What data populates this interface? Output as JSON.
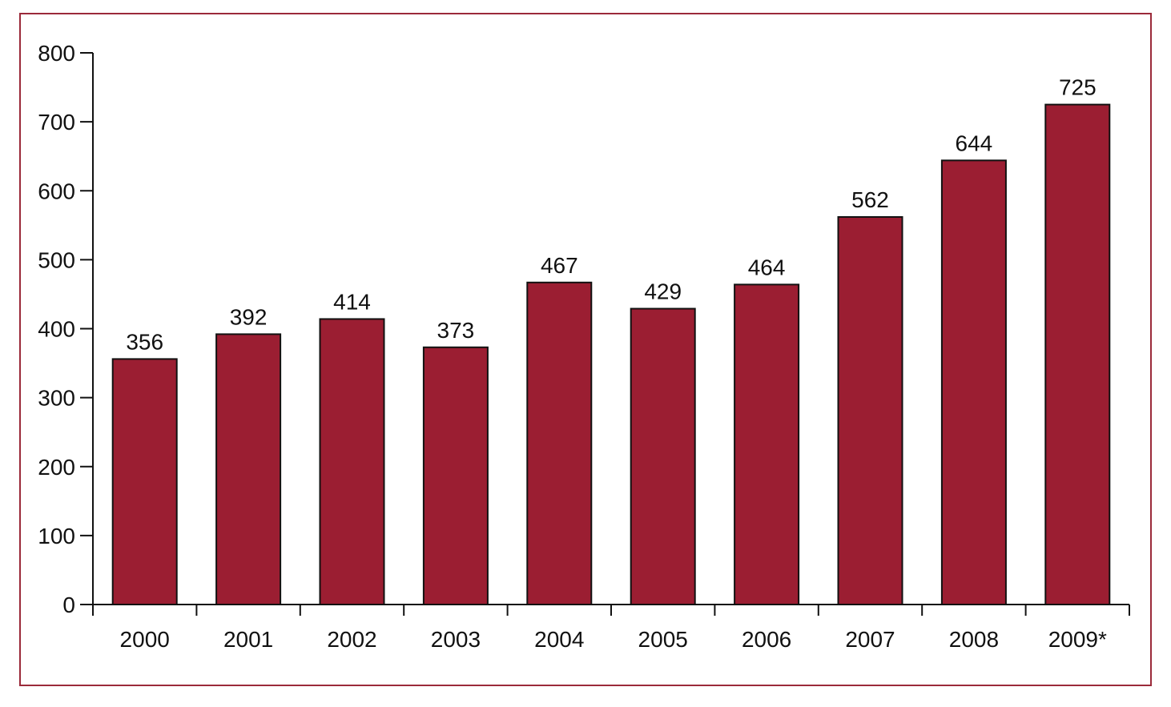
{
  "chart_data": {
    "type": "bar",
    "categories": [
      "2000",
      "2001",
      "2002",
      "2003",
      "2004",
      "2005",
      "2006",
      "2007",
      "2008",
      "2009*"
    ],
    "values": [
      356,
      392,
      414,
      373,
      467,
      429,
      464,
      562,
      644,
      725
    ],
    "data_labels": [
      "356",
      "392",
      "414",
      "373",
      "467",
      "429",
      "464",
      "562",
      "644",
      "725"
    ],
    "ylim": [
      0,
      800
    ],
    "yticks": [
      0,
      100,
      200,
      300,
      400,
      500,
      600,
      700,
      800
    ],
    "ytick_labels": [
      "0",
      "100",
      "200",
      "300",
      "400",
      "500",
      "600",
      "700",
      "800"
    ],
    "grid": false,
    "legend": "none",
    "colors": {
      "bar": "#9b1e32",
      "bar_edge": "#111111",
      "frame": "#9b2a3a",
      "axis": "#111111"
    }
  }
}
